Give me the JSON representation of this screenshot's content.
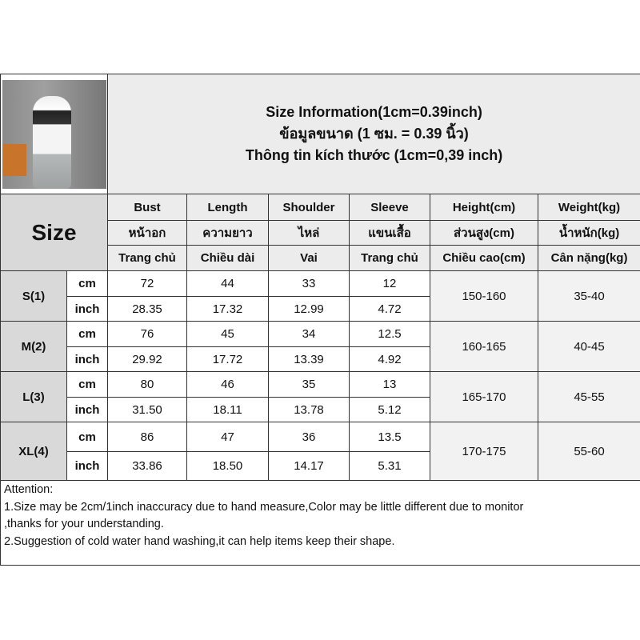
{
  "title_lines": [
    "Size Information(1cm=0.39inch)",
    "ข้อมูลขนาด (1 ซม. = 0.39 นิ้ว)",
    "Thông tin kích thước (1cm=0,39 inch)"
  ],
  "size_label": "Size",
  "columns": [
    {
      "en": "Bust",
      "th": "หน้าอก",
      "vi": "Trang chủ"
    },
    {
      "en": "Length",
      "th": "ความยาว",
      "vi": "Chiều dài"
    },
    {
      "en": "Shoulder",
      "th": "ไหล่",
      "vi": "Vai"
    },
    {
      "en": "Sleeve",
      "th": "แขนเสื้อ",
      "vi": "Trang chủ"
    },
    {
      "en": "Height(cm)",
      "th": "ส่วนสูง(cm)",
      "vi": "Chiều cao(cm)"
    },
    {
      "en": "Weight(kg)",
      "th": "น้ำหนัก(kg)",
      "vi": "Cân nặng(kg)"
    }
  ],
  "units": {
    "cm": "cm",
    "inch": "inch"
  },
  "sizes": [
    {
      "name": "S(1)",
      "cm": [
        "72",
        "44",
        "33",
        "12"
      ],
      "inch": [
        "28.35",
        "17.32",
        "12.99",
        "4.72"
      ],
      "height": "150-160",
      "weight": "35-40"
    },
    {
      "name": "M(2)",
      "cm": [
        "76",
        "45",
        "34",
        "12.5"
      ],
      "inch": [
        "29.92",
        "17.72",
        "13.39",
        "4.92"
      ],
      "height": "160-165",
      "weight": "40-45"
    },
    {
      "name": "L(3)",
      "cm": [
        "80",
        "46",
        "35",
        "13"
      ],
      "inch": [
        "31.50",
        "18.11",
        "13.78",
        "5.12"
      ],
      "height": "165-170",
      "weight": "45-55"
    },
    {
      "name": "XL(4)",
      "cm": [
        "86",
        "47",
        "36",
        "13.5"
      ],
      "inch": [
        "33.86",
        "18.50",
        "14.17",
        "5.31"
      ],
      "height": "170-175",
      "weight": "55-60"
    }
  ],
  "notes": [
    "Attention:",
    "1.Size may be 2cm/1inch inaccuracy due to hand measure,Color may be little different due to monitor",
    ",thanks for your understanding.",
    "2.Suggestion of cold water hand washing,it can help items keep their shape."
  ]
}
